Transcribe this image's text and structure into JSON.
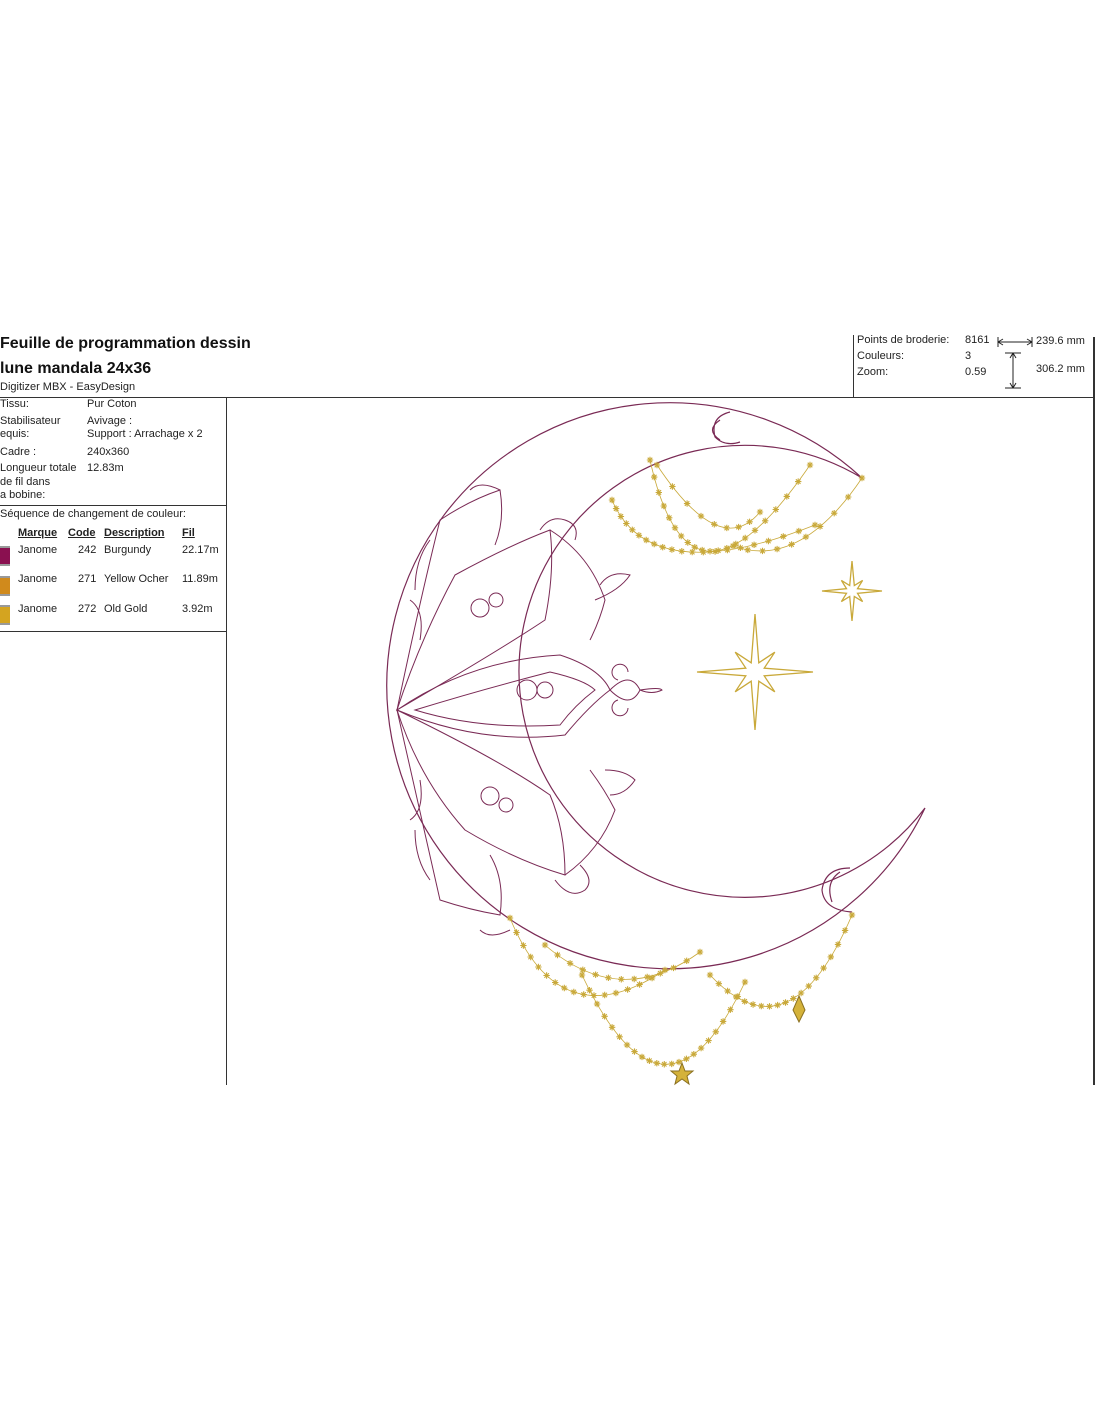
{
  "header": {
    "title_line1": "Feuille de programmation dessin",
    "title_line2": "lune mandala 24x36",
    "software": "Digitizer MBX - EasyDesign"
  },
  "info": [
    {
      "label": "Tissu:",
      "value": "Pur Coton"
    },
    {
      "label": "Stabilisateur\nequis:",
      "value": "Avivage :\nSupport : Arrachage x 2"
    },
    {
      "label": "Cadre :",
      "value": "240x360"
    },
    {
      "label": "Longueur totale\nde fil dans\na bobine:",
      "value": "12.83m"
    }
  ],
  "sequence": {
    "title": "Séquence de changement de couleur:",
    "headers": {
      "brand": "Marque",
      "code": "Code",
      "description": "Description",
      "thread": "Fil"
    },
    "rows": [
      {
        "brand": "Janome",
        "code": "242",
        "description": "Burgundy",
        "thread": "22.17m",
        "color": "#8a1050"
      },
      {
        "brand": "Janome",
        "code": "271",
        "description": "Yellow Ocher",
        "thread": "11.89m",
        "color": "#d08a1c"
      },
      {
        "brand": "Janome",
        "code": "272",
        "description": "Old Gold",
        "thread": "3.92m",
        "color": "#d4a420"
      }
    ]
  },
  "stats": {
    "stitches_label": "Points de broderie:",
    "stitches": "8161",
    "colors_label": "Couleurs:",
    "colors": "3",
    "zoom_label": "Zoom:",
    "zoom": "0.59",
    "width": "239.6 mm",
    "height": "306.2 mm"
  },
  "design": {
    "outline_color": "#7a2a55",
    "gold_color": "#c9a93a"
  }
}
